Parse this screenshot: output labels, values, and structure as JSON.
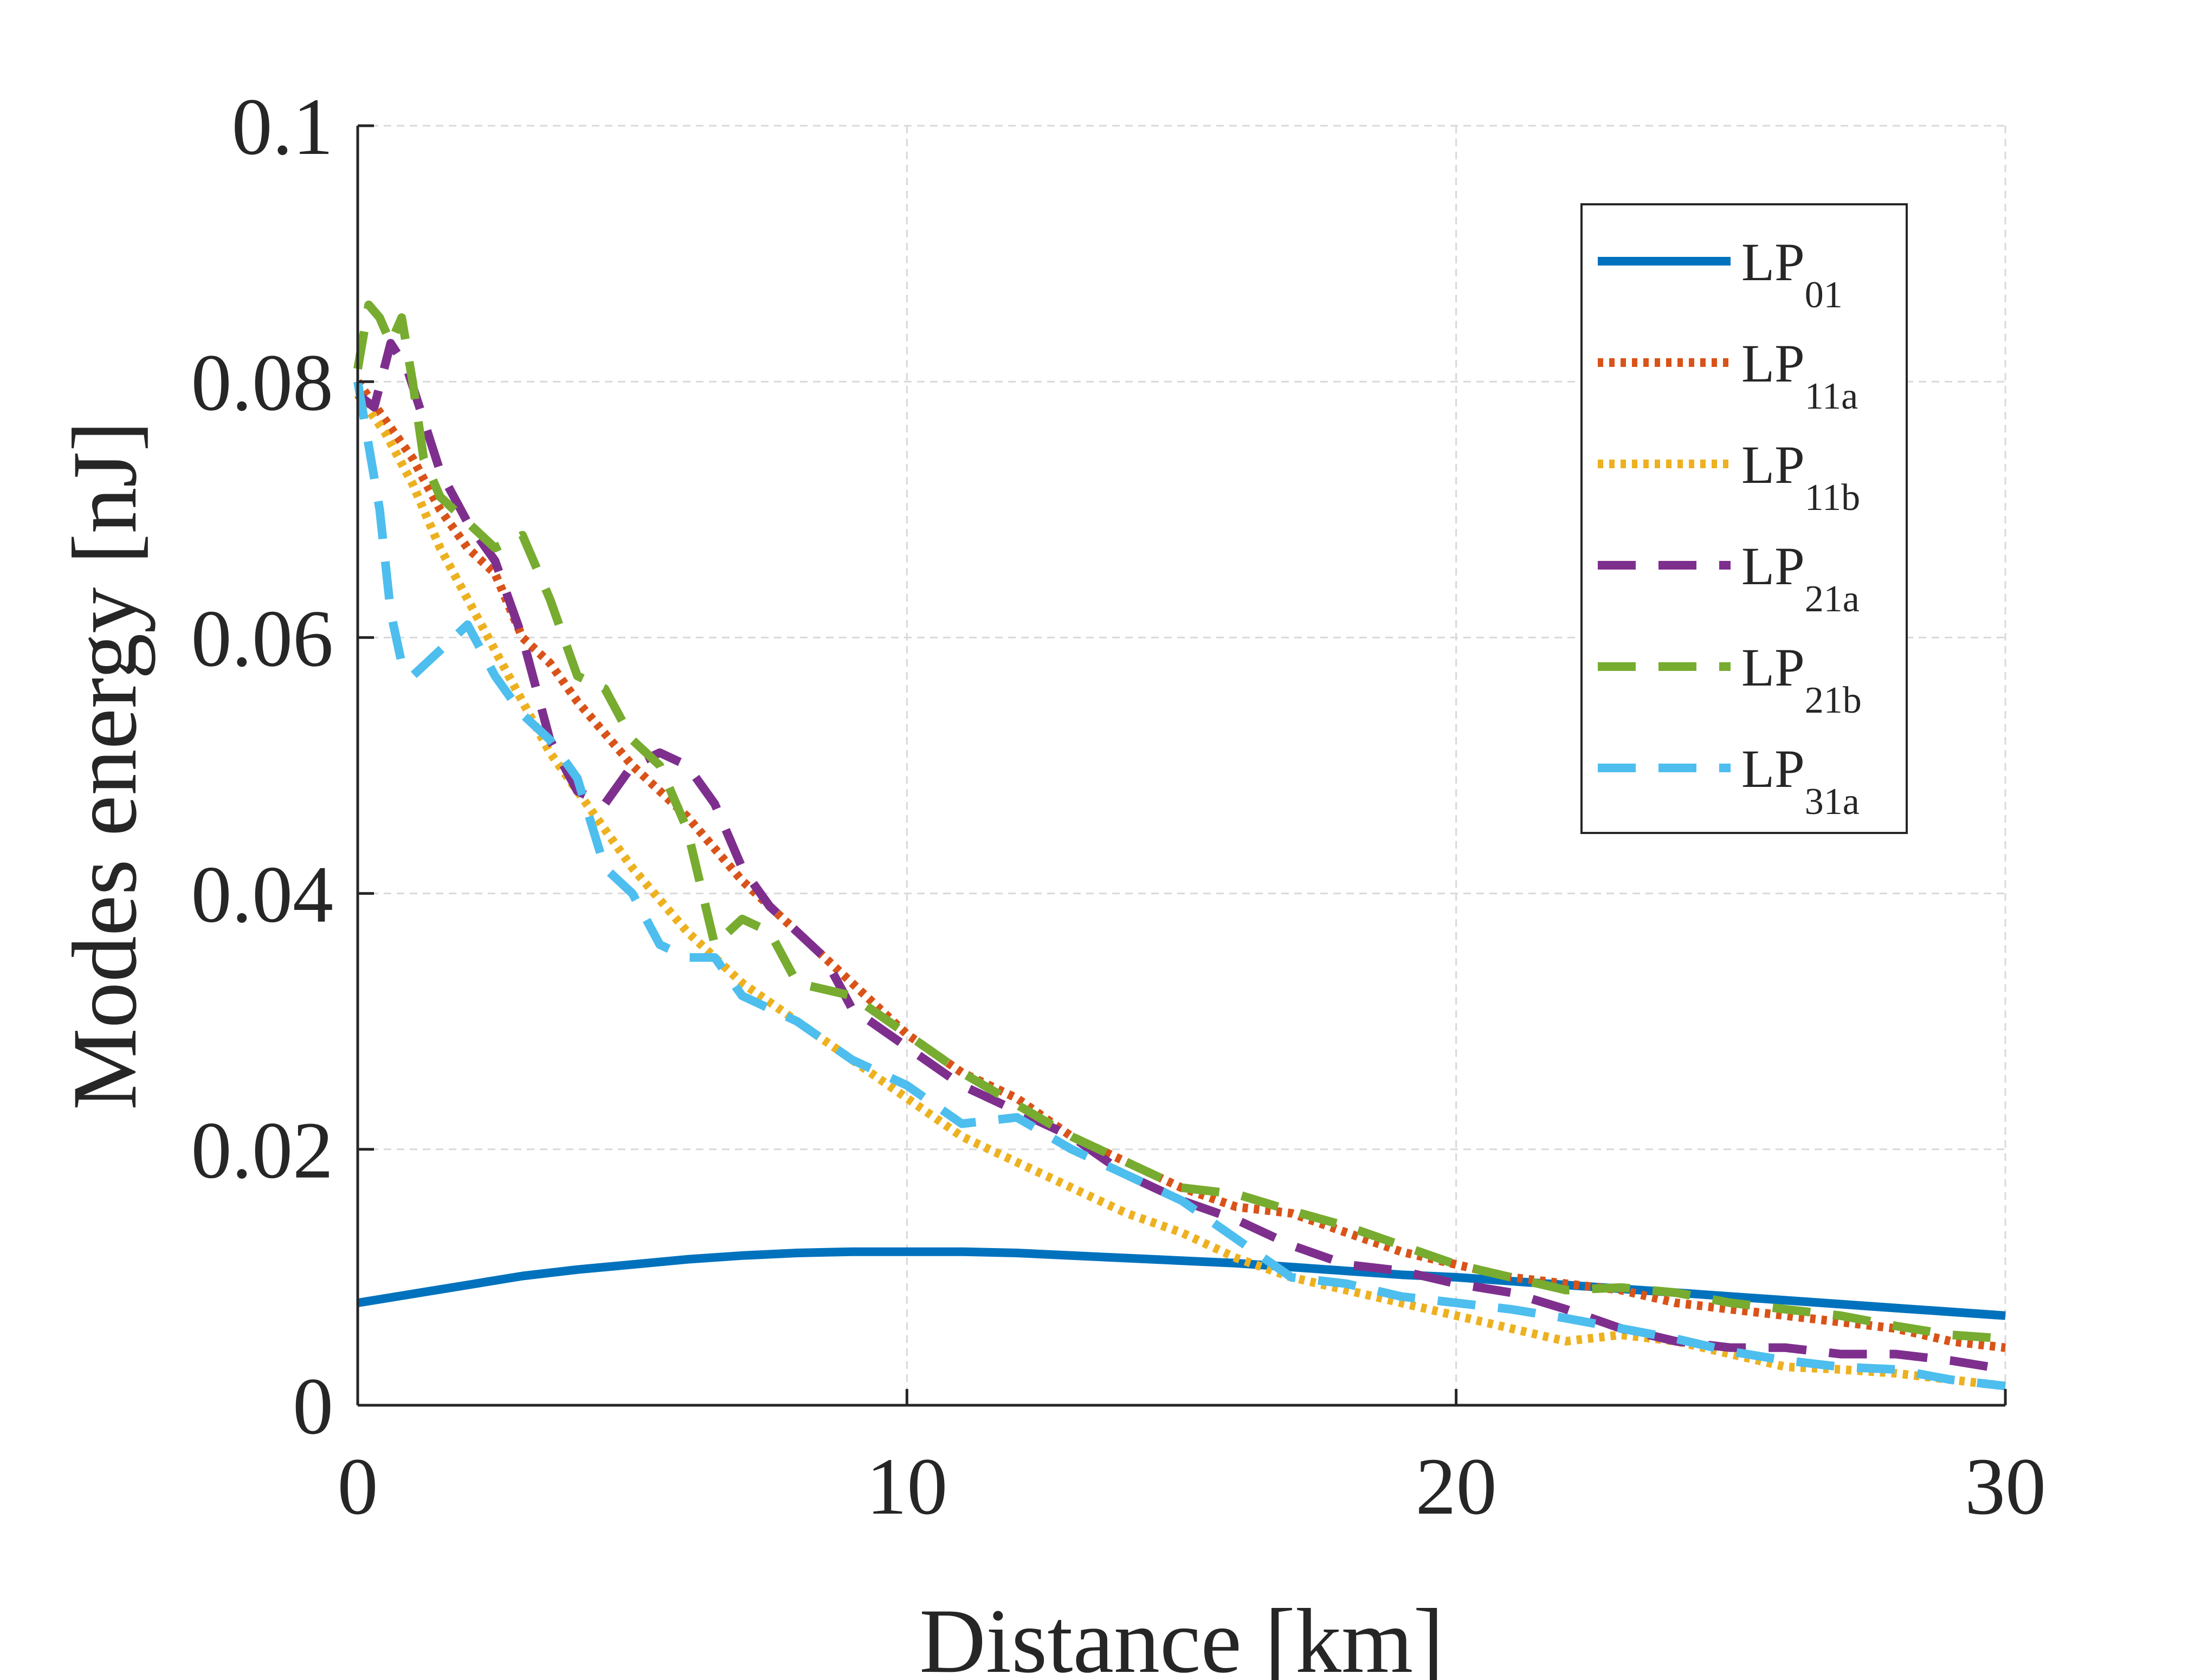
{
  "chart_data": {
    "type": "line",
    "title": "",
    "xlabel": "Distance [km]",
    "ylabel": "Modes energy [nJ]",
    "xlim": [
      0,
      30
    ],
    "ylim": [
      0,
      0.1
    ],
    "xticks": [
      0,
      10,
      20,
      30
    ],
    "xtick_labels": [
      "0",
      "10",
      "20",
      "30"
    ],
    "yticks": [
      0,
      0.02,
      0.04,
      0.06,
      0.08,
      0.1
    ],
    "ytick_labels": [
      "0",
      "0.02",
      "0.04",
      "0.06",
      "0.08",
      "0.1"
    ],
    "grid": true,
    "legend_position": "top-right",
    "series": [
      {
        "name": "LP01",
        "label_main": "LP",
        "label_sub": "01",
        "color": "#0072BD",
        "style": "solid",
        "x": [
          0,
          1,
          2,
          3,
          4,
          5,
          6,
          7,
          8,
          9,
          10,
          11,
          12,
          13,
          14,
          15,
          16,
          17,
          18,
          19,
          20,
          21,
          22,
          23,
          24,
          25,
          26,
          27,
          28,
          29,
          30
        ],
        "y": [
          0.008,
          0.0087,
          0.0094,
          0.0101,
          0.0106,
          0.011,
          0.0114,
          0.0117,
          0.0119,
          0.012,
          0.012,
          0.012,
          0.0119,
          0.0117,
          0.0115,
          0.0113,
          0.0111,
          0.0108,
          0.0105,
          0.0102,
          0.01,
          0.0097,
          0.0094,
          0.0091,
          0.0088,
          0.0085,
          0.0082,
          0.0079,
          0.0076,
          0.0073,
          0.007
        ]
      },
      {
        "name": "LP11a",
        "label_main": "LP",
        "label_sub": "11a",
        "color": "#D95319",
        "style": "dotted",
        "x": [
          0,
          0.5,
          1,
          1.5,
          2,
          2.5,
          3,
          3.5,
          4,
          5,
          6,
          7,
          8,
          9,
          10,
          11,
          12,
          13,
          14,
          15,
          16,
          17,
          18,
          19,
          20,
          21,
          22,
          23,
          24,
          25,
          26,
          27,
          28,
          29,
          30
        ],
        "y": [
          0.08,
          0.077,
          0.074,
          0.07,
          0.067,
          0.065,
          0.06,
          0.058,
          0.055,
          0.05,
          0.046,
          0.041,
          0.037,
          0.033,
          0.029,
          0.026,
          0.024,
          0.021,
          0.019,
          0.017,
          0.0155,
          0.015,
          0.0135,
          0.012,
          0.011,
          0.01,
          0.0095,
          0.009,
          0.008,
          0.0075,
          0.007,
          0.0065,
          0.006,
          0.005,
          0.0045
        ]
      },
      {
        "name": "LP11b",
        "label_main": "LP",
        "label_sub": "11b",
        "color": "#EDB120",
        "style": "dotted",
        "x": [
          0,
          0.5,
          1,
          1.5,
          2,
          2.5,
          3,
          3.5,
          4,
          5,
          6,
          7,
          8,
          9,
          10,
          11,
          12,
          13,
          14,
          15,
          16,
          17,
          18,
          19,
          20,
          21,
          22,
          23,
          24,
          25,
          26,
          27,
          28,
          29,
          30
        ],
        "y": [
          0.079,
          0.076,
          0.072,
          0.067,
          0.063,
          0.059,
          0.055,
          0.051,
          0.048,
          0.042,
          0.037,
          0.033,
          0.03,
          0.027,
          0.024,
          0.021,
          0.019,
          0.017,
          0.015,
          0.0135,
          0.0115,
          0.01,
          0.009,
          0.008,
          0.007,
          0.006,
          0.005,
          0.0055,
          0.005,
          0.004,
          0.003,
          0.0028,
          0.0025,
          0.002,
          0.0015
        ]
      },
      {
        "name": "LP21a",
        "label_main": "LP",
        "label_sub": "21a",
        "color": "#7E2F8E",
        "style": "dashed",
        "x": [
          0,
          0.3,
          0.6,
          0.9,
          1.2,
          1.5,
          2,
          2.5,
          3,
          3.5,
          4,
          4.5,
          5,
          5.5,
          6,
          6.5,
          7,
          7.5,
          8,
          8.5,
          9,
          10,
          11,
          12,
          13,
          14,
          15,
          16,
          17,
          18,
          19,
          20,
          21,
          22,
          23,
          24,
          25,
          26,
          27,
          28,
          29,
          30
        ],
        "y": [
          0.079,
          0.078,
          0.083,
          0.081,
          0.077,
          0.073,
          0.069,
          0.066,
          0.06,
          0.052,
          0.048,
          0.047,
          0.05,
          0.051,
          0.05,
          0.047,
          0.042,
          0.039,
          0.037,
          0.035,
          0.031,
          0.028,
          0.025,
          0.023,
          0.021,
          0.018,
          0.016,
          0.0145,
          0.0125,
          0.011,
          0.0105,
          0.0095,
          0.0088,
          0.0075,
          0.006,
          0.005,
          0.0045,
          0.0045,
          0.004,
          0.004,
          0.0035,
          0.0028
        ]
      },
      {
        "name": "LP21b",
        "label_main": "LP",
        "label_sub": "21b",
        "color": "#77AC30",
        "style": "dashed",
        "x": [
          0,
          0.2,
          0.4,
          0.6,
          0.8,
          1.0,
          1.2,
          1.5,
          2,
          2.5,
          3,
          3.5,
          4,
          4.5,
          5,
          5.5,
          6,
          6.5,
          7,
          7.5,
          8,
          9,
          10,
          11,
          12,
          13,
          14,
          15,
          16,
          17,
          18,
          19,
          20,
          21,
          22,
          23,
          24,
          25,
          26,
          27,
          28,
          29,
          30
        ],
        "y": [
          0.081,
          0.086,
          0.085,
          0.083,
          0.085,
          0.08,
          0.074,
          0.071,
          0.069,
          0.067,
          0.068,
          0.063,
          0.057,
          0.056,
          0.052,
          0.05,
          0.045,
          0.036,
          0.038,
          0.037,
          0.033,
          0.032,
          0.029,
          0.026,
          0.0235,
          0.021,
          0.019,
          0.017,
          0.0165,
          0.0152,
          0.014,
          0.0125,
          0.011,
          0.01,
          0.009,
          0.0092,
          0.0088,
          0.008,
          0.0075,
          0.007,
          0.0062,
          0.0055,
          0.0052
        ]
      },
      {
        "name": "LP31a",
        "label_main": "LP",
        "label_sub": "31a",
        "color": "#4DBEEE",
        "style": "dashed",
        "x": [
          0,
          0.2,
          0.4,
          0.6,
          0.8,
          1.0,
          1.5,
          2,
          2.5,
          3,
          3.5,
          4,
          4.5,
          5,
          5.5,
          6,
          6.5,
          7,
          7.5,
          8,
          9,
          10,
          11,
          12,
          13,
          14,
          15,
          16,
          17,
          18,
          19,
          20,
          21,
          22,
          23,
          24,
          25,
          26,
          27,
          28,
          29,
          30
        ],
        "y": [
          0.08,
          0.075,
          0.07,
          0.062,
          0.058,
          0.057,
          0.059,
          0.061,
          0.057,
          0.054,
          0.052,
          0.049,
          0.042,
          0.04,
          0.036,
          0.035,
          0.035,
          0.032,
          0.031,
          0.03,
          0.027,
          0.025,
          0.022,
          0.0225,
          0.02,
          0.018,
          0.016,
          0.013,
          0.01,
          0.0095,
          0.0085,
          0.008,
          0.0075,
          0.0068,
          0.006,
          0.0052,
          0.0042,
          0.0035,
          0.003,
          0.0028,
          0.002,
          0.0015
        ]
      }
    ]
  }
}
